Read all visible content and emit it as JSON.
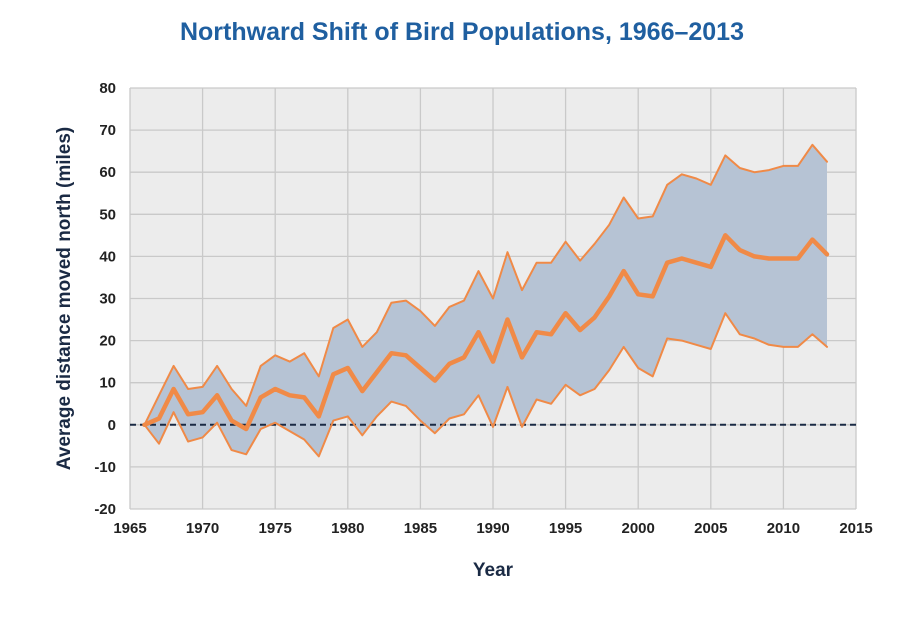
{
  "colors": {
    "title": "#1f5fa0",
    "plot_background": "#ececec",
    "grid": "#c9c9c9",
    "band_fill": "#b6c3d4",
    "line": "#f08a47",
    "zero_line": "#1a2a44",
    "axis_text": "#222222"
  },
  "chart_data": {
    "type": "line",
    "title": "Northward Shift of Bird Populations, 1966–2013",
    "xlabel": "Year",
    "ylabel": "Average distance moved north (miles)",
    "xlim": [
      1965,
      2015
    ],
    "ylim": [
      -20,
      80
    ],
    "xticks": [
      1965,
      1970,
      1975,
      1980,
      1985,
      1990,
      1995,
      2000,
      2005,
      2010,
      2015
    ],
    "yticks": [
      -20,
      -10,
      0,
      10,
      20,
      30,
      40,
      50,
      60,
      70,
      80
    ],
    "grid": true,
    "reference_line": 0,
    "x": [
      1966,
      1967,
      1968,
      1969,
      1970,
      1971,
      1972,
      1973,
      1974,
      1975,
      1976,
      1977,
      1978,
      1979,
      1980,
      1981,
      1982,
      1983,
      1984,
      1985,
      1986,
      1987,
      1988,
      1989,
      1990,
      1991,
      1992,
      1993,
      1994,
      1995,
      1996,
      1997,
      1998,
      1999,
      2000,
      2001,
      2002,
      2003,
      2004,
      2005,
      2006,
      2007,
      2008,
      2009,
      2010,
      2011,
      2012,
      2013
    ],
    "series": [
      {
        "values": [
          0,
          1.5,
          8.5,
          2.5,
          3,
          7,
          1,
          -1,
          6.5,
          8.5,
          7,
          6.5,
          2,
          12,
          13.5,
          8,
          12.5,
          17,
          16.5,
          13.5,
          10.5,
          14.5,
          16,
          22,
          15,
          25,
          16,
          22,
          21.5,
          26.5,
          22.5,
          25.5,
          30.5,
          36.5,
          31,
          30.5,
          38.5,
          39.5,
          38.5,
          37.5,
          45,
          41.5,
          40,
          39.5,
          39.5,
          39.5,
          44,
          40.5
        ]
      },
      {
        "values": [
          0,
          7,
          14,
          8.5,
          9,
          14,
          8.5,
          4.5,
          14,
          16.5,
          15,
          17,
          11.5,
          23,
          25,
          18.5,
          22,
          29,
          29.5,
          27,
          23.5,
          28,
          29.5,
          36.5,
          30,
          41,
          32,
          38.5,
          38.5,
          43.5,
          39,
          43,
          47.5,
          54,
          49,
          49.5,
          57,
          59.5,
          58.5,
          57,
          64,
          61,
          60,
          60.5,
          61.5,
          61.5,
          66.5,
          62.5
        ]
      },
      {
        "values": [
          0,
          -4.5,
          3,
          -4,
          -3,
          0.5,
          -6,
          -7,
          -1,
          0.5,
          -1.5,
          -3.5,
          -7.5,
          1,
          2,
          -2.5,
          2,
          5.5,
          4.5,
          1,
          -2,
          1.5,
          2.5,
          7,
          -0.5,
          9,
          -0.5,
          6,
          5,
          9.5,
          7,
          8.5,
          13,
          18.5,
          13.5,
          11.5,
          20.5,
          20,
          19,
          18,
          26.5,
          21.5,
          20.5,
          19,
          18.5,
          18.5,
          21.5,
          18.5
        ]
      }
    ]
  }
}
